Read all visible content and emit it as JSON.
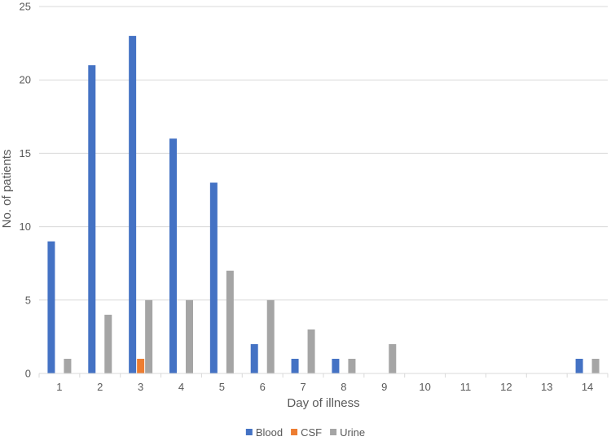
{
  "chart_data": {
    "type": "bar",
    "title": "",
    "xlabel": "Day of illness",
    "ylabel": "No. of patients",
    "ylim": [
      0,
      25
    ],
    "yticks": [
      0,
      5,
      10,
      15,
      20,
      25
    ],
    "grid": true,
    "legend_position": "bottom",
    "categories": [
      "1",
      "2",
      "3",
      "4",
      "5",
      "6",
      "7",
      "8",
      "9",
      "10",
      "11",
      "12",
      "13",
      "14"
    ],
    "series": [
      {
        "name": "Blood",
        "color": "#4472C4",
        "values": [
          9,
          21,
          23,
          16,
          13,
          2,
          1,
          1,
          0,
          0,
          0,
          0,
          0,
          1
        ]
      },
      {
        "name": "CSF",
        "color": "#ED7D31",
        "values": [
          0,
          0,
          1,
          0,
          0,
          0,
          0,
          0,
          0,
          0,
          0,
          0,
          0,
          0
        ]
      },
      {
        "name": "Urine",
        "color": "#A5A5A5",
        "values": [
          1,
          4,
          5,
          5,
          7,
          5,
          3,
          1,
          2,
          0,
          0,
          0,
          0,
          1
        ]
      }
    ]
  }
}
